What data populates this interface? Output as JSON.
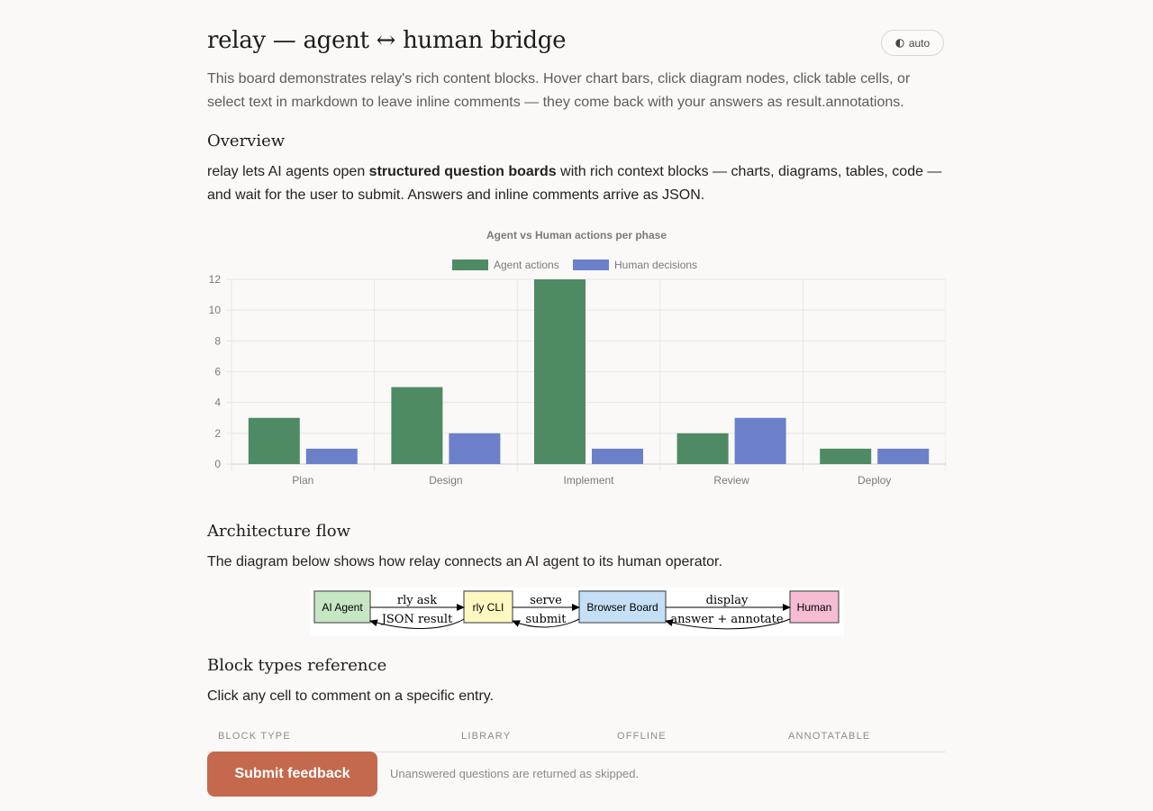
{
  "header": {
    "title": "relay — agent ↔ human bridge",
    "theme_toggle": "auto",
    "intro": "This board demonstrates relay's rich content blocks. Hover chart bars, click diagram nodes, click table cells, or select text in markdown to leave inline comments — they come back with your answers as result.annotations."
  },
  "overview": {
    "heading": "Overview",
    "text_before": "relay lets AI agents open ",
    "text_bold": "structured question boards",
    "text_after": " with rich context blocks — charts, diagrams, tables, code — and wait for the user to submit. Answers and inline comments arrive as JSON."
  },
  "chart_data": {
    "type": "bar",
    "title": "Agent vs Human actions per phase",
    "categories": [
      "Plan",
      "Design",
      "Implement",
      "Review",
      "Deploy"
    ],
    "series": [
      {
        "name": "Agent actions",
        "values": [
          3,
          5,
          12,
          2,
          1
        ],
        "color": "#4e8a64"
      },
      {
        "name": "Human decisions",
        "values": [
          1,
          2,
          1,
          3,
          1
        ],
        "color": "#6b80c8"
      }
    ],
    "ylim": [
      0,
      12
    ],
    "yticks": [
      "0",
      "2",
      "4",
      "6",
      "8",
      "10",
      "12"
    ],
    "grid": true,
    "legend": "top"
  },
  "architecture": {
    "heading": "Architecture flow",
    "text": "The diagram below shows how relay connects an AI agent to its human operator.",
    "nodes": [
      "AI Agent",
      "rly CLI",
      "Browser Board",
      "Human"
    ],
    "node_colors": [
      "#c7e6c4",
      "#fdf8c0",
      "#c5e0f6",
      "#f6bcd3"
    ],
    "edges_forward": [
      "rly ask",
      "serve",
      "display"
    ],
    "edges_back": [
      "JSON result",
      "submit",
      "answer + annotate"
    ]
  },
  "reference": {
    "heading": "Block types reference",
    "text": "Click any cell to comment on a specific entry.",
    "columns": [
      "BLOCK TYPE",
      "LIBRARY",
      "OFFLINE",
      "ANNOTATABLE"
    ]
  },
  "footer": {
    "submit_label": "Submit feedback",
    "note": "Unanswered questions are returned as skipped."
  }
}
